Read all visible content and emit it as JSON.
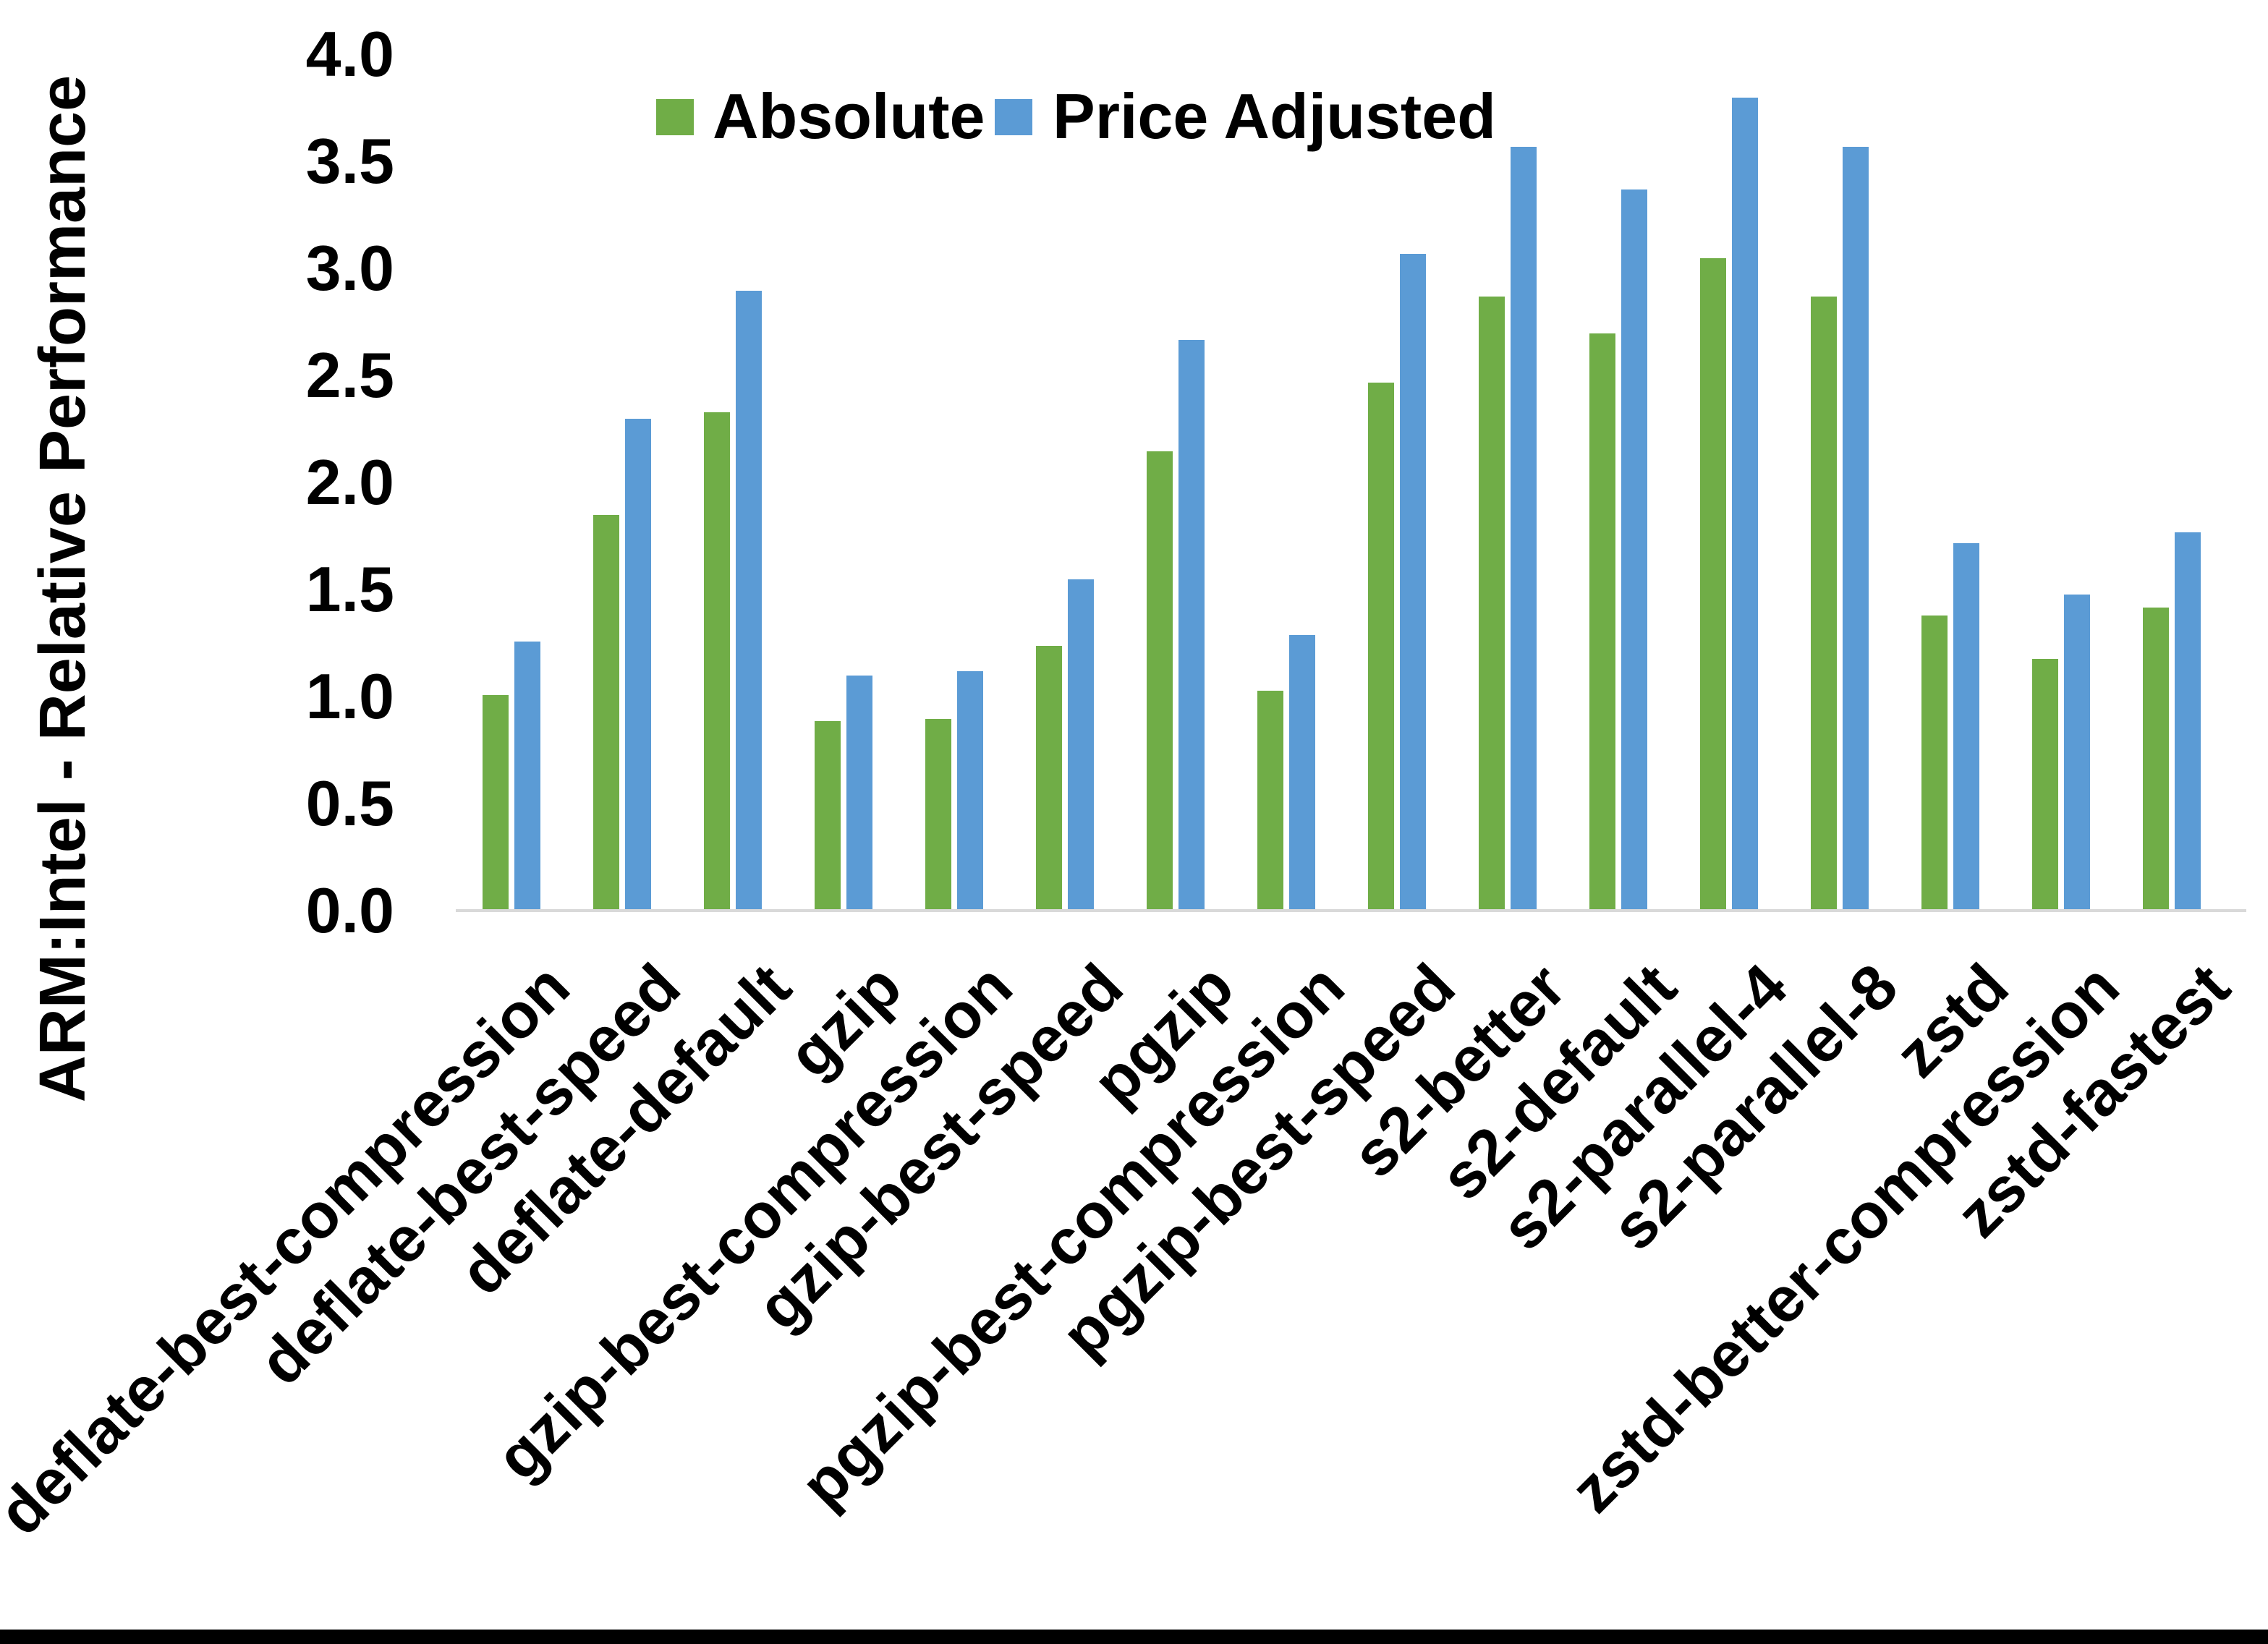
{
  "figure": {
    "background": "#ffffff",
    "bottom_border_color": "#000000",
    "axis_line_color": "#d9d9d9",
    "text_color": "#000000"
  },
  "legend": {
    "items": [
      {
        "label": "Absolute",
        "color": "#70AD47"
      },
      {
        "label": "Price Adjusted",
        "color": "#5B9BD5"
      }
    ]
  },
  "chart_data": {
    "type": "bar",
    "title": "",
    "xlabel": "",
    "ylabel": "ARM:Intel - Relative Performance",
    "ylim": [
      0.0,
      4.0
    ],
    "y_ticks": [
      "0.0",
      "0.5",
      "1.0",
      "1.5",
      "2.0",
      "2.5",
      "3.0",
      "3.5",
      "4.0"
    ],
    "grid": false,
    "legend_position": "top-center",
    "categories": [
      "deflate-best-compression",
      "deflate-best-speed",
      "deflate-default",
      "gzip",
      "gzip-best-compression",
      "gzip-best-speed",
      "pgzip",
      "pgzip-best-compression",
      "pgzip-best-speed",
      "s2-better",
      "s2-default",
      "s2-parallel-4",
      "s2-parallel-8",
      "zstd",
      "zstd-better-compression",
      "zstd-fastest"
    ],
    "series": [
      {
        "name": "Absolute",
        "color": "#70AD47",
        "values": [
          1.0,
          1.84,
          2.32,
          0.88,
          0.89,
          1.23,
          2.14,
          1.02,
          2.46,
          2.86,
          2.69,
          3.04,
          2.86,
          1.37,
          1.17,
          1.41
        ]
      },
      {
        "name": "Price Adjusted",
        "color": "#5B9BD5",
        "values": [
          1.25,
          2.29,
          2.89,
          1.09,
          1.11,
          1.54,
          2.66,
          1.28,
          3.06,
          3.56,
          3.36,
          3.79,
          3.56,
          1.71,
          1.47,
          1.76
        ]
      }
    ]
  }
}
